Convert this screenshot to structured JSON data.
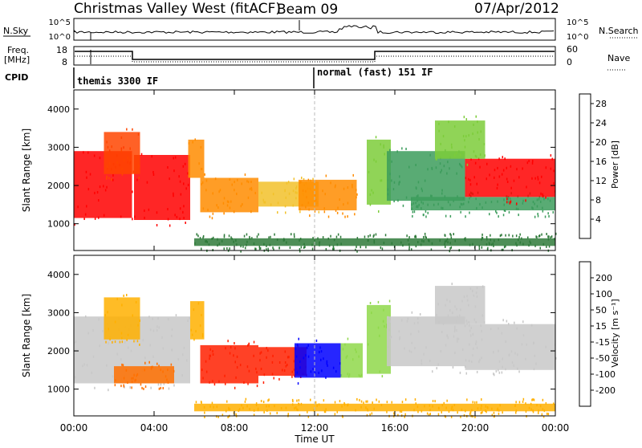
{
  "header": {
    "station": "Christmas Valley West (fitACF)",
    "beam": "Beam 09",
    "date": "07/Apr/2012"
  },
  "top_panels": {
    "nsky_label": "N.Sky",
    "nsky_ticks": [
      "10^5",
      "10^0"
    ],
    "nsearch_label": "N.Search",
    "nsearch_ticks": [
      "10^5",
      "10^0"
    ],
    "freq_label_1": "Freq.",
    "freq_label_2": "[MHz]",
    "freq_ticks": [
      "18",
      "8"
    ],
    "nave_label": "Nave",
    "nave_ticks": [
      "60",
      "0"
    ],
    "cpid_label": "CPID",
    "cpid_modes": [
      {
        "text": "themis 3300 IF",
        "start_hour": 0
      },
      {
        "text": "normal (fast) 151 IF",
        "start_hour": 12
      }
    ]
  },
  "chart_data": [
    {
      "type": "heatmap",
      "quantity": "Power",
      "ylabel": "Slant Range [km]",
      "xlabel": "Time UT",
      "xlim_hours": [
        0,
        24
      ],
      "ylim_km": [
        300,
        4500
      ],
      "x_ticks": [
        "00:00",
        "04:00",
        "08:00",
        "12:00",
        "16:00",
        "20:00",
        "00:00"
      ],
      "y_ticks": [
        "1000",
        "2000",
        "3000",
        "4000"
      ],
      "colorbar": {
        "label": "Power [dB]",
        "ticks": [
          "4",
          "8",
          "12",
          "16",
          "20",
          "24",
          "28"
        ],
        "range": [
          0,
          30
        ],
        "colors": [
          "#0000ff",
          "#2a4fd0",
          "#2f7a3a",
          "#3c9c5c",
          "#7ccc3a",
          "#f2c12a",
          "#ff8c00",
          "#ff4500",
          "#ff0000"
        ]
      },
      "regions": [
        {
          "t0": 0.0,
          "t1": 2.9,
          "r0": 1150,
          "r1": 2900,
          "value": 28
        },
        {
          "t0": 3.0,
          "t1": 5.8,
          "r0": 1100,
          "r1": 2800,
          "value": 27
        },
        {
          "t0": 1.5,
          "t1": 3.3,
          "r0": 2300,
          "r1": 3400,
          "value": 24
        },
        {
          "t0": 5.7,
          "t1": 6.5,
          "r0": 2200,
          "r1": 3200,
          "value": 20
        },
        {
          "t0": 6.3,
          "t1": 9.2,
          "r0": 1300,
          "r1": 2200,
          "value": 20
        },
        {
          "t0": 9.2,
          "t1": 12.2,
          "r0": 1450,
          "r1": 2100,
          "value": 18
        },
        {
          "t0": 11.2,
          "t1": 14.1,
          "r0": 1350,
          "r1": 2150,
          "value": 22
        },
        {
          "t0": 14.6,
          "t1": 15.8,
          "r0": 1500,
          "r1": 3200,
          "value": 14
        },
        {
          "t0": 15.6,
          "t1": 19.5,
          "r0": 1600,
          "r1": 2900,
          "value": 13
        },
        {
          "t0": 16.8,
          "t1": 24.0,
          "r0": 1350,
          "r1": 1700,
          "value": 10
        },
        {
          "t0": 19.5,
          "t1": 24.0,
          "r0": 1700,
          "r1": 2700,
          "value": 27
        },
        {
          "t0": 18.0,
          "t1": 20.5,
          "r0": 2700,
          "r1": 3700,
          "value": 16
        },
        {
          "t0": 6.0,
          "t1": 24.0,
          "r0": 420,
          "r1": 620,
          "value": 7
        }
      ]
    },
    {
      "type": "heatmap",
      "quantity": "Velocity",
      "ylabel": "Slant Range [km]",
      "xlabel": "Time UT",
      "xlim_hours": [
        0,
        24
      ],
      "ylim_km": [
        300,
        4500
      ],
      "x_ticks": [
        "00:00",
        "04:00",
        "08:00",
        "12:00",
        "16:00",
        "20:00",
        "00:00"
      ],
      "y_ticks": [
        "1000",
        "2000",
        "3000",
        "4000"
      ],
      "colorbar": {
        "label": "Velocity [m s⁻¹]",
        "ticks": [
          "200",
          "100",
          "50",
          "15",
          "-15",
          "-50",
          "-100",
          "-200"
        ],
        "colors": [
          "#0000ff",
          "#2f7a3a",
          "#4fb34f",
          "#8fd84a",
          "#c8c8c8",
          "#ffb000",
          "#ff7000",
          "#ff2000",
          "#ff0000"
        ]
      },
      "regions": [
        {
          "t0": 0.0,
          "t1": 5.8,
          "r0": 1150,
          "r1": 2900,
          "value": 0
        },
        {
          "t0": 2.0,
          "t1": 5.0,
          "r0": 1150,
          "r1": 1600,
          "value": -60
        },
        {
          "t0": 1.5,
          "t1": 3.3,
          "r0": 2300,
          "r1": 3400,
          "value": -40
        },
        {
          "t0": 5.8,
          "t1": 6.5,
          "r0": 2300,
          "r1": 3300,
          "value": -20
        },
        {
          "t0": 6.3,
          "t1": 9.2,
          "r0": 1150,
          "r1": 2150,
          "value": -150
        },
        {
          "t0": 9.2,
          "t1": 11.6,
          "r0": 1350,
          "r1": 2100,
          "value": -180
        },
        {
          "t0": 11.0,
          "t1": 13.3,
          "r0": 1300,
          "r1": 2200,
          "value": 210
        },
        {
          "t0": 13.3,
          "t1": 14.4,
          "r0": 1300,
          "r1": 2200,
          "value": 40
        },
        {
          "t0": 14.6,
          "t1": 15.8,
          "r0": 1400,
          "r1": 3200,
          "value": 20
        },
        {
          "t0": 15.6,
          "t1": 19.5,
          "r0": 1600,
          "r1": 2900,
          "value": 0
        },
        {
          "t0": 19.5,
          "t1": 24.0,
          "r0": 1500,
          "r1": 2700,
          "value": 0
        },
        {
          "t0": 18.0,
          "t1": 20.5,
          "r0": 2700,
          "r1": 3700,
          "value": 0
        },
        {
          "t0": 6.0,
          "t1": 24.0,
          "r0": 420,
          "r1": 620,
          "value": -40
        }
      ]
    }
  ]
}
